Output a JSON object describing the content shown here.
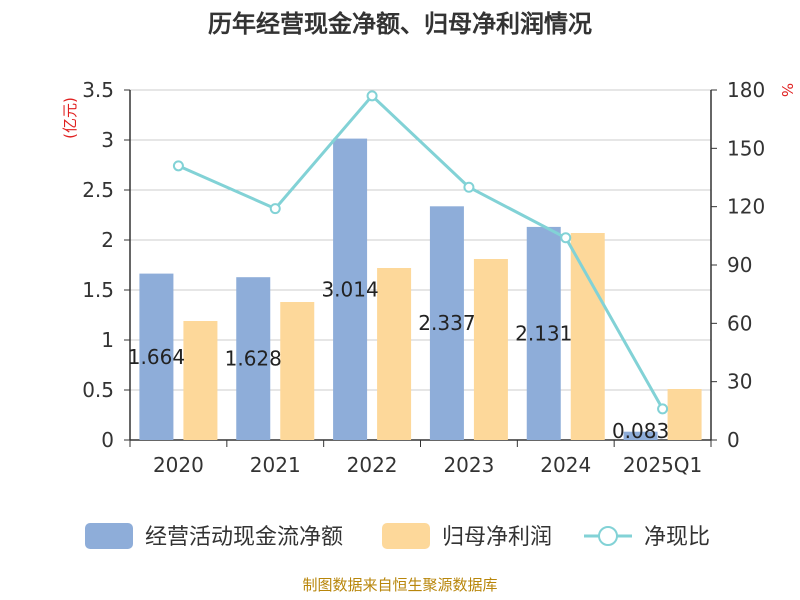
{
  "title": "历年经营现金净额、归母净利润情况",
  "source": "制图数据来自恒生聚源数据库",
  "colors": {
    "cash": "#8eadd9",
    "profit": "#fdd89a",
    "ratio": "#82d2d6",
    "axis": "#333333",
    "grid": "#cccccc",
    "unit": "#e02020",
    "source": "#b8860b"
  },
  "chart_data": {
    "type": "bar",
    "title": "历年经营现金净额、归母净利润情况",
    "categories": [
      "2020",
      "2021",
      "2022",
      "2023",
      "2024",
      "2025Q1"
    ],
    "y_left": {
      "unit": "(亿元)",
      "min": 0,
      "max": 3.5,
      "ticks": [
        "0",
        "0.5",
        "1",
        "1.5",
        "2",
        "2.5",
        "3",
        "3.5"
      ]
    },
    "y_right": {
      "unit": "%",
      "min": 0,
      "max": 180,
      "ticks": [
        "0",
        "30",
        "60",
        "90",
        "120",
        "150",
        "180"
      ]
    },
    "grid": true,
    "legend_position": "bottom",
    "series": [
      {
        "name": "经营活动现金流净额",
        "type": "bar",
        "axis": "left",
        "values": [
          1.664,
          1.628,
          3.014,
          2.337,
          2.131,
          0.083
        ],
        "labels": [
          "1.664",
          "1.628",
          "3.014",
          "2.337",
          "2.131",
          "0.083"
        ]
      },
      {
        "name": "归母净利润",
        "type": "bar",
        "axis": "left",
        "values": [
          1.19,
          1.38,
          1.72,
          1.81,
          2.07,
          0.51
        ]
      },
      {
        "name": "净现比",
        "type": "line",
        "axis": "right",
        "values": [
          141,
          119,
          177,
          130,
          104,
          16
        ]
      }
    ]
  }
}
